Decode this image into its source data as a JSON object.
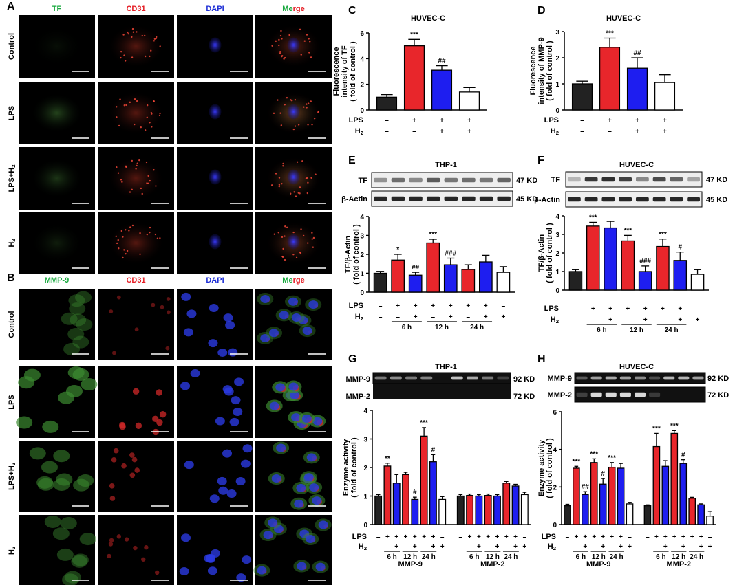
{
  "micrographs": {
    "A": {
      "label": "A",
      "columns": [
        "TF",
        "CD31",
        "DAPI"
      ],
      "merge": [
        "Me",
        "rge"
      ],
      "rows": [
        "Control",
        "LPS",
        "LPS+H",
        "H"
      ],
      "sub": "2"
    },
    "B": {
      "label": "B",
      "columns": [
        "MMP-9",
        "CD31",
        "DAPI"
      ],
      "merge": [
        "Me",
        "rge"
      ],
      "rows": [
        "Control",
        "LPS",
        "LPS+H",
        "H"
      ],
      "sub": "2"
    }
  },
  "colors": {
    "black": "#222222",
    "red": "#e8262b",
    "blue": "#1e1ef0",
    "white": "#ffffff",
    "green": "#17a83d",
    "redText": "#e51c23",
    "blueText": "#1f30d6"
  },
  "bands": {
    "E": {
      "top": "TF",
      "bottom": "β-Actin",
      "top_kd": "47 KD",
      "bottom_kd": "45 KD",
      "title": "THP-1"
    },
    "F": {
      "top": "TF",
      "bottom": "β-Actin",
      "top_kd": "47 KD",
      "bottom_kd": "45 KD",
      "title": "HUVEC-C"
    },
    "G": {
      "top": "MMP-9",
      "bottom": "MMP-2",
      "top_kd": "92 KD",
      "bottom_kd": "72 KD",
      "title": "THP-1"
    },
    "H": {
      "top": "MMP-9",
      "bottom": "MMP-2",
      "top_kd": "92 KD",
      "bottom_kd": "72 KD",
      "title": "HUVEC-C"
    }
  },
  "chart_data": [
    {
      "panel": "C",
      "type": "bar",
      "title": "HUVEC-C",
      "ylabel": [
        "Fluorescence",
        "intensity of TF",
        "( fold of control )"
      ],
      "ylim": [
        0,
        6
      ],
      "yticks": [
        0,
        2,
        4,
        6
      ],
      "values": [
        1.0,
        5.0,
        3.1,
        1.4
      ],
      "errors": [
        0.2,
        0.5,
        0.35,
        0.35
      ],
      "colors": [
        "black",
        "red",
        "blue",
        "white"
      ],
      "stars": [
        "",
        "***",
        "##",
        ""
      ],
      "rows": [
        {
          "label": "LPS",
          "signs": [
            "–",
            "+",
            "+",
            "+"
          ]
        },
        {
          "label": "H",
          "sub": "2",
          "signs": [
            "–",
            "–",
            "+",
            "+"
          ]
        }
      ]
    },
    {
      "panel": "D",
      "type": "bar",
      "title": "HUVEC-C",
      "ylabel": [
        "Fluorescence",
        "intensity of MMP-9",
        "( fold of control )"
      ],
      "ylim": [
        0,
        3
      ],
      "yticks": [
        0,
        1,
        2,
        3
      ],
      "values": [
        1.0,
        2.4,
        1.6,
        1.05
      ],
      "errors": [
        0.1,
        0.35,
        0.4,
        0.3
      ],
      "colors": [
        "black",
        "red",
        "blue",
        "white"
      ],
      "stars": [
        "",
        "***",
        "##",
        ""
      ],
      "rows": [
        {
          "label": "LPS",
          "signs": [
            "–",
            "+",
            "+",
            "+"
          ]
        },
        {
          "label": "H",
          "sub": "2",
          "signs": [
            "–",
            "–",
            "+",
            "+"
          ]
        }
      ]
    },
    {
      "panel": "E",
      "type": "bar",
      "ylabel": [
        "TF/β-Actin",
        "( fold of control )"
      ],
      "ylim": [
        0,
        4
      ],
      "yticks": [
        0,
        1,
        2,
        3,
        4
      ],
      "values": [
        1.0,
        1.7,
        0.9,
        2.6,
        1.45,
        1.2,
        1.6,
        1.05
      ],
      "errors": [
        0.1,
        0.3,
        0.15,
        0.2,
        0.35,
        0.25,
        0.35,
        0.3
      ],
      "colors": [
        "black",
        "red",
        "blue",
        "red",
        "blue",
        "red",
        "blue",
        "white"
      ],
      "stars": [
        "",
        "*",
        "##",
        "***",
        "###",
        "",
        "",
        ""
      ],
      "rows": [
        {
          "label": "LPS",
          "signs": [
            "–",
            "+",
            "+",
            "+",
            "+",
            "+",
            "+",
            "–"
          ]
        },
        {
          "label": "H",
          "sub": "2",
          "signs": [
            "–",
            "–",
            "+",
            "–",
            "+",
            "–",
            "+",
            "+"
          ]
        }
      ],
      "groups": [
        {
          "label": "6 h",
          "from": 1,
          "to": 2
        },
        {
          "label": "12 h",
          "from": 3,
          "to": 4
        },
        {
          "label": "24 h",
          "from": 5,
          "to": 6
        }
      ]
    },
    {
      "panel": "F",
      "type": "bar",
      "ylabel": [
        "TF/β-Actin",
        "( fold of control )"
      ],
      "ylim": [
        0,
        4
      ],
      "yticks": [
        0,
        1,
        2,
        3,
        4
      ],
      "values": [
        1.0,
        3.45,
        3.35,
        2.65,
        1.0,
        2.35,
        1.6,
        0.85
      ],
      "errors": [
        0.1,
        0.2,
        0.35,
        0.3,
        0.3,
        0.4,
        0.45,
        0.25
      ],
      "colors": [
        "black",
        "red",
        "blue",
        "red",
        "blue",
        "red",
        "blue",
        "white"
      ],
      "stars": [
        "",
        "***",
        "",
        "***",
        "###",
        "***",
        "#",
        ""
      ],
      "rows": [
        {
          "label": "LPS",
          "signs": [
            "–",
            "+",
            "+",
            "+",
            "+",
            "+",
            "+",
            "–"
          ]
        },
        {
          "label": "H",
          "sub": "2",
          "signs": [
            "–",
            "–",
            "+",
            "–",
            "+",
            "–",
            "+",
            "+"
          ]
        }
      ],
      "groups": [
        {
          "label": "6 h",
          "from": 1,
          "to": 2
        },
        {
          "label": "12 h",
          "from": 3,
          "to": 4
        },
        {
          "label": "24 h",
          "from": 5,
          "to": 6
        }
      ]
    },
    {
      "panel": "G",
      "type": "bar",
      "ylabel": [
        "Enzyme activity",
        "( fold of control )"
      ],
      "ylim": [
        0,
        4
      ],
      "yticks": [
        0,
        1,
        2,
        3,
        4
      ],
      "values": [
        1.0,
        2.05,
        1.45,
        1.75,
        0.88,
        3.1,
        2.2,
        0.88,
        1.0,
        1.02,
        1.0,
        1.02,
        1.0,
        1.45,
        1.35,
        1.05
      ],
      "errors": [
        0.05,
        0.1,
        0.3,
        0.08,
        0.08,
        0.3,
        0.25,
        0.1,
        0.05,
        0.05,
        0.05,
        0.05,
        0.05,
        0.06,
        0.06,
        0.08
      ],
      "colors": [
        "black",
        "red",
        "blue",
        "red",
        "blue",
        "red",
        "blue",
        "white",
        "black",
        "red",
        "blue",
        "red",
        "blue",
        "red",
        "blue",
        "white"
      ],
      "stars": [
        "",
        "**",
        "",
        "",
        "#",
        "***",
        "#",
        "",
        "",
        "",
        "",
        "",
        "",
        "",
        "",
        ""
      ],
      "rows": [
        {
          "label": "LPS",
          "signs": [
            "–",
            "+",
            "+",
            "+",
            "+",
            "+",
            "+",
            "–",
            "–",
            "+",
            "+",
            "+",
            "+",
            "+",
            "+",
            "–"
          ]
        },
        {
          "label": "H",
          "sub": "2",
          "signs": [
            "–",
            "–",
            "+",
            "–",
            "+",
            "–",
            "+",
            "+",
            "–",
            "–",
            "+",
            "–",
            "+",
            "–",
            "+",
            "+"
          ]
        }
      ],
      "groups": [
        {
          "label": "6 h",
          "from": 1,
          "to": 2
        },
        {
          "label": "12 h",
          "from": 3,
          "to": 4
        },
        {
          "label": "24 h",
          "from": 5,
          "to": 6
        },
        {
          "label": "6 h",
          "from": 9,
          "to": 10
        },
        {
          "label": "12 h",
          "from": 11,
          "to": 12
        },
        {
          "label": "24 h",
          "from": 13,
          "to": 14
        }
      ],
      "supergroups": [
        {
          "label": "MMP-9",
          "from": 0,
          "to": 7
        },
        {
          "label": "MMP-2",
          "from": 8,
          "to": 15
        }
      ]
    },
    {
      "panel": "H",
      "type": "bar",
      "ylabel": [
        "Enzyme activity",
        "( fold of control )"
      ],
      "ylim": [
        0,
        6
      ],
      "yticks": [
        0,
        2,
        4,
        6
      ],
      "values": [
        1.0,
        3.0,
        1.6,
        3.3,
        2.15,
        3.05,
        3.0,
        1.1,
        1.0,
        4.15,
        3.1,
        4.85,
        3.25,
        1.4,
        1.05,
        0.45
      ],
      "errors": [
        0.08,
        0.1,
        0.15,
        0.2,
        0.3,
        0.25,
        0.25,
        0.08,
        0.05,
        0.7,
        0.3,
        0.15,
        0.2,
        0.05,
        0.05,
        0.25
      ],
      "colors": [
        "black",
        "red",
        "blue",
        "red",
        "blue",
        "red",
        "blue",
        "white",
        "black",
        "red",
        "blue",
        "red",
        "blue",
        "red",
        "blue",
        "white"
      ],
      "stars": [
        "",
        "***",
        "##",
        "***",
        "#",
        "***",
        "",
        "",
        "",
        "***",
        "",
        "***",
        "#",
        "",
        "",
        ""
      ],
      "rows": [
        {
          "label": "LPS",
          "signs": [
            "–",
            "+",
            "+",
            "+",
            "+",
            "+",
            "+",
            "–",
            "–",
            "+",
            "+",
            "+",
            "+",
            "+",
            "+",
            "–"
          ]
        },
        {
          "label": "H",
          "sub": "2",
          "signs": [
            "–",
            "–",
            "+",
            "–",
            "+",
            "–",
            "+",
            "+",
            "–",
            "–",
            "+",
            "–",
            "+",
            "–",
            "+",
            "+"
          ]
        }
      ],
      "groups": [
        {
          "label": "6 h",
          "from": 1,
          "to": 2
        },
        {
          "label": "12 h",
          "from": 3,
          "to": 4
        },
        {
          "label": "24 h",
          "from": 5,
          "to": 6
        },
        {
          "label": "6 h",
          "from": 9,
          "to": 10
        },
        {
          "label": "12 h",
          "from": 11,
          "to": 12
        },
        {
          "label": "24 h",
          "from": 13,
          "to": 14
        }
      ],
      "supergroups": [
        {
          "label": "MMP-9",
          "from": 0,
          "to": 7
        },
        {
          "label": "MMP-2",
          "from": 8,
          "to": 15
        }
      ]
    }
  ]
}
